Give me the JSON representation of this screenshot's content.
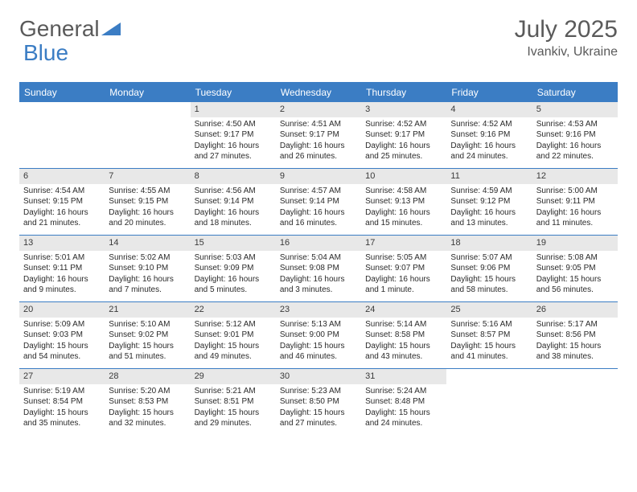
{
  "logo": {
    "word1": "General",
    "word2": "Blue"
  },
  "title": "July 2025",
  "location": "Ivankiv, Ukraine",
  "colors": {
    "accent": "#3b7dc4",
    "daynum_bg": "#e8e8e8",
    "text_muted": "#5a5a5a",
    "text": "#2a2a2a",
    "bg": "#ffffff"
  },
  "daynames": [
    "Sunday",
    "Monday",
    "Tuesday",
    "Wednesday",
    "Thursday",
    "Friday",
    "Saturday"
  ],
  "weeks": [
    [
      {
        "n": "",
        "sr": "",
        "ss": "",
        "dl": ""
      },
      {
        "n": "",
        "sr": "",
        "ss": "",
        "dl": ""
      },
      {
        "n": "1",
        "sr": "Sunrise: 4:50 AM",
        "ss": "Sunset: 9:17 PM",
        "dl": "Daylight: 16 hours and 27 minutes."
      },
      {
        "n": "2",
        "sr": "Sunrise: 4:51 AM",
        "ss": "Sunset: 9:17 PM",
        "dl": "Daylight: 16 hours and 26 minutes."
      },
      {
        "n": "3",
        "sr": "Sunrise: 4:52 AM",
        "ss": "Sunset: 9:17 PM",
        "dl": "Daylight: 16 hours and 25 minutes."
      },
      {
        "n": "4",
        "sr": "Sunrise: 4:52 AM",
        "ss": "Sunset: 9:16 PM",
        "dl": "Daylight: 16 hours and 24 minutes."
      },
      {
        "n": "5",
        "sr": "Sunrise: 4:53 AM",
        "ss": "Sunset: 9:16 PM",
        "dl": "Daylight: 16 hours and 22 minutes."
      }
    ],
    [
      {
        "n": "6",
        "sr": "Sunrise: 4:54 AM",
        "ss": "Sunset: 9:15 PM",
        "dl": "Daylight: 16 hours and 21 minutes."
      },
      {
        "n": "7",
        "sr": "Sunrise: 4:55 AM",
        "ss": "Sunset: 9:15 PM",
        "dl": "Daylight: 16 hours and 20 minutes."
      },
      {
        "n": "8",
        "sr": "Sunrise: 4:56 AM",
        "ss": "Sunset: 9:14 PM",
        "dl": "Daylight: 16 hours and 18 minutes."
      },
      {
        "n": "9",
        "sr": "Sunrise: 4:57 AM",
        "ss": "Sunset: 9:14 PM",
        "dl": "Daylight: 16 hours and 16 minutes."
      },
      {
        "n": "10",
        "sr": "Sunrise: 4:58 AM",
        "ss": "Sunset: 9:13 PM",
        "dl": "Daylight: 16 hours and 15 minutes."
      },
      {
        "n": "11",
        "sr": "Sunrise: 4:59 AM",
        "ss": "Sunset: 9:12 PM",
        "dl": "Daylight: 16 hours and 13 minutes."
      },
      {
        "n": "12",
        "sr": "Sunrise: 5:00 AM",
        "ss": "Sunset: 9:11 PM",
        "dl": "Daylight: 16 hours and 11 minutes."
      }
    ],
    [
      {
        "n": "13",
        "sr": "Sunrise: 5:01 AM",
        "ss": "Sunset: 9:11 PM",
        "dl": "Daylight: 16 hours and 9 minutes."
      },
      {
        "n": "14",
        "sr": "Sunrise: 5:02 AM",
        "ss": "Sunset: 9:10 PM",
        "dl": "Daylight: 16 hours and 7 minutes."
      },
      {
        "n": "15",
        "sr": "Sunrise: 5:03 AM",
        "ss": "Sunset: 9:09 PM",
        "dl": "Daylight: 16 hours and 5 minutes."
      },
      {
        "n": "16",
        "sr": "Sunrise: 5:04 AM",
        "ss": "Sunset: 9:08 PM",
        "dl": "Daylight: 16 hours and 3 minutes."
      },
      {
        "n": "17",
        "sr": "Sunrise: 5:05 AM",
        "ss": "Sunset: 9:07 PM",
        "dl": "Daylight: 16 hours and 1 minute."
      },
      {
        "n": "18",
        "sr": "Sunrise: 5:07 AM",
        "ss": "Sunset: 9:06 PM",
        "dl": "Daylight: 15 hours and 58 minutes."
      },
      {
        "n": "19",
        "sr": "Sunrise: 5:08 AM",
        "ss": "Sunset: 9:05 PM",
        "dl": "Daylight: 15 hours and 56 minutes."
      }
    ],
    [
      {
        "n": "20",
        "sr": "Sunrise: 5:09 AM",
        "ss": "Sunset: 9:03 PM",
        "dl": "Daylight: 15 hours and 54 minutes."
      },
      {
        "n": "21",
        "sr": "Sunrise: 5:10 AM",
        "ss": "Sunset: 9:02 PM",
        "dl": "Daylight: 15 hours and 51 minutes."
      },
      {
        "n": "22",
        "sr": "Sunrise: 5:12 AM",
        "ss": "Sunset: 9:01 PM",
        "dl": "Daylight: 15 hours and 49 minutes."
      },
      {
        "n": "23",
        "sr": "Sunrise: 5:13 AM",
        "ss": "Sunset: 9:00 PM",
        "dl": "Daylight: 15 hours and 46 minutes."
      },
      {
        "n": "24",
        "sr": "Sunrise: 5:14 AM",
        "ss": "Sunset: 8:58 PM",
        "dl": "Daylight: 15 hours and 43 minutes."
      },
      {
        "n": "25",
        "sr": "Sunrise: 5:16 AM",
        "ss": "Sunset: 8:57 PM",
        "dl": "Daylight: 15 hours and 41 minutes."
      },
      {
        "n": "26",
        "sr": "Sunrise: 5:17 AM",
        "ss": "Sunset: 8:56 PM",
        "dl": "Daylight: 15 hours and 38 minutes."
      }
    ],
    [
      {
        "n": "27",
        "sr": "Sunrise: 5:19 AM",
        "ss": "Sunset: 8:54 PM",
        "dl": "Daylight: 15 hours and 35 minutes."
      },
      {
        "n": "28",
        "sr": "Sunrise: 5:20 AM",
        "ss": "Sunset: 8:53 PM",
        "dl": "Daylight: 15 hours and 32 minutes."
      },
      {
        "n": "29",
        "sr": "Sunrise: 5:21 AM",
        "ss": "Sunset: 8:51 PM",
        "dl": "Daylight: 15 hours and 29 minutes."
      },
      {
        "n": "30",
        "sr": "Sunrise: 5:23 AM",
        "ss": "Sunset: 8:50 PM",
        "dl": "Daylight: 15 hours and 27 minutes."
      },
      {
        "n": "31",
        "sr": "Sunrise: 5:24 AM",
        "ss": "Sunset: 8:48 PM",
        "dl": "Daylight: 15 hours and 24 minutes."
      },
      {
        "n": "",
        "sr": "",
        "ss": "",
        "dl": ""
      },
      {
        "n": "",
        "sr": "",
        "ss": "",
        "dl": ""
      }
    ]
  ]
}
